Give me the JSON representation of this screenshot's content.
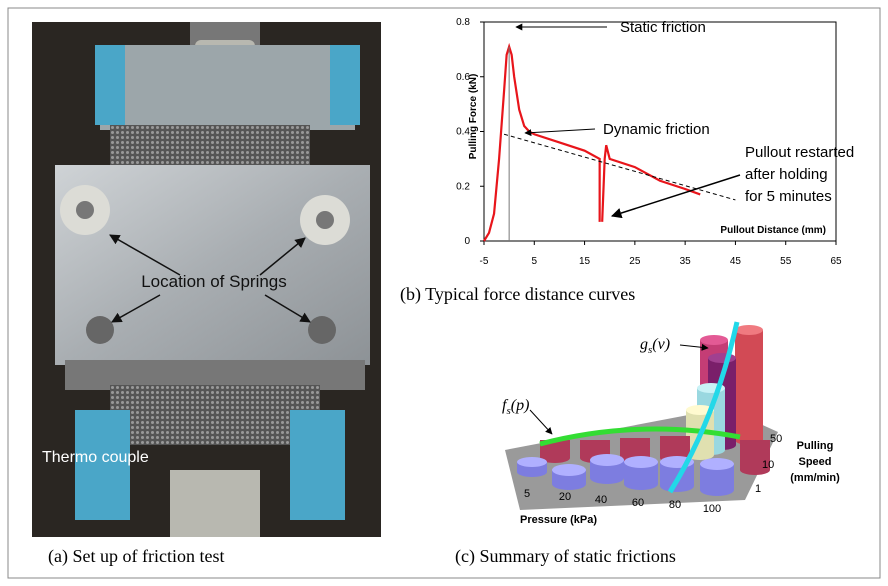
{
  "panel_a": {
    "caption": "(a) Set up of friction test",
    "labels": [
      "Location of Springs",
      "Thermo couple"
    ]
  },
  "chart_data": {
    "type": "line",
    "caption": "(b) Typical force distance curves",
    "x_label": "Pullout  Distance (mm)",
    "y_label": "Pulling Force (kN)",
    "xlim": [
      -5,
      65
    ],
    "xticks": [
      -5,
      5,
      15,
      25,
      35,
      45,
      55,
      65
    ],
    "ylim": [
      0,
      0.8
    ],
    "yticks": [
      0,
      0.2,
      0.4,
      0.6,
      0.8
    ],
    "annotations": [
      "Static friction",
      "Dynamic friction",
      "Pullout restarted",
      "after holding",
      "for 5 minutes"
    ],
    "series": [
      {
        "color": "#e8151b",
        "dash": false,
        "x": [
          -5,
          -4,
          -3,
          -2,
          -1,
          -0.5,
          0,
          0.5,
          1,
          2,
          3,
          4,
          5,
          10,
          15,
          18,
          18,
          null,
          18.5,
          19,
          19.3,
          20,
          25,
          30,
          35,
          38
        ],
        "values": [
          0,
          0.03,
          0.1,
          0.3,
          0.55,
          0.68,
          0.71,
          0.68,
          0.6,
          0.48,
          0.42,
          0.4,
          0.39,
          0.36,
          0.33,
          0.3,
          0.07,
          null,
          0.07,
          0.3,
          0.35,
          0.3,
          0.27,
          0.22,
          0.19,
          0.17
        ]
      },
      {
        "color": "#000000",
        "dash": true,
        "x": [
          -1,
          45
        ],
        "values": [
          0.39,
          0.15
        ]
      }
    ]
  },
  "panel_c": {
    "caption": "(c) Summary of static frictions",
    "x_label": "Pressure (kPa)",
    "x_ticks": [
      "5",
      "20",
      "40",
      "60",
      "80",
      "100"
    ],
    "depth_label": [
      "Pulling",
      "Speed",
      "(mm/min)"
    ],
    "depth_ticks": [
      "1",
      "10",
      "50"
    ],
    "g_label": {
      "base": "g",
      "sub": "s",
      "arg": "(v)"
    },
    "f_label": {
      "base": "f",
      "sub": "s",
      "arg": "(p)"
    }
  }
}
